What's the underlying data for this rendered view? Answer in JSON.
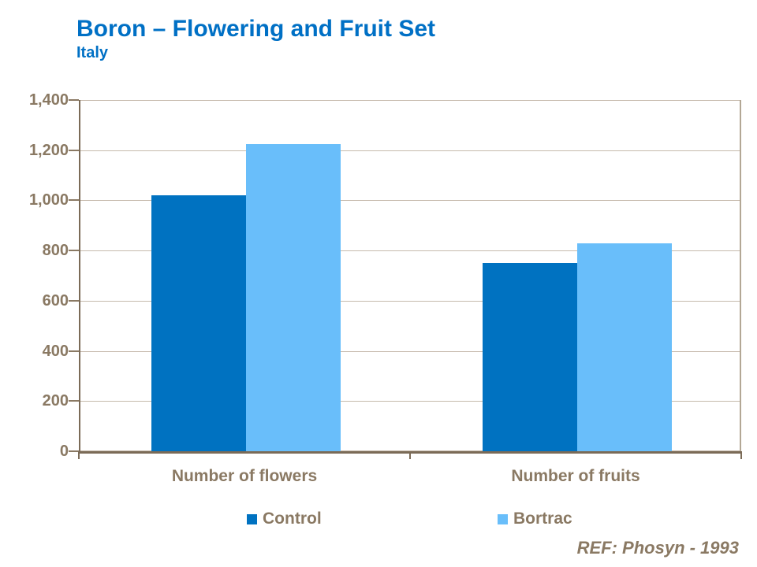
{
  "slide": {
    "title": "Boron – Flowering and Fruit Set",
    "subtitle": "Italy",
    "reference": "REF: Phosyn - 1993"
  },
  "colors": {
    "title_blue": "#0070C5",
    "control_blue": "#0072C1",
    "bortrac_blue": "#69BEFA",
    "axis_text_brown": "#8A7963",
    "gridline_tan": "#C6BAAC",
    "axis_line_brown": "#7B6B57",
    "plot_right_border_tan": "#B3A795"
  },
  "chart_data": {
    "type": "bar",
    "title": "Boron – Flowering and Fruit Set",
    "subtitle": "Italy",
    "categories": [
      "Number of flowers",
      "Number of fruits"
    ],
    "series": [
      {
        "name": "Control",
        "color": "#0072C1",
        "values": [
          1020,
          750
        ]
      },
      {
        "name": "Bortrac",
        "color": "#69BEFA",
        "values": [
          1225,
          830
        ]
      }
    ],
    "ylim": [
      0,
      1400
    ],
    "ytick_step": 200,
    "ytick_labels": [
      "0",
      "200",
      "400",
      "600",
      "800",
      "1,000",
      "1,200",
      "1,400"
    ],
    "xlabel": "",
    "ylabel": "",
    "grid": true,
    "legend_position": "bottom",
    "annotation": "REF: Phosyn - 1993"
  }
}
